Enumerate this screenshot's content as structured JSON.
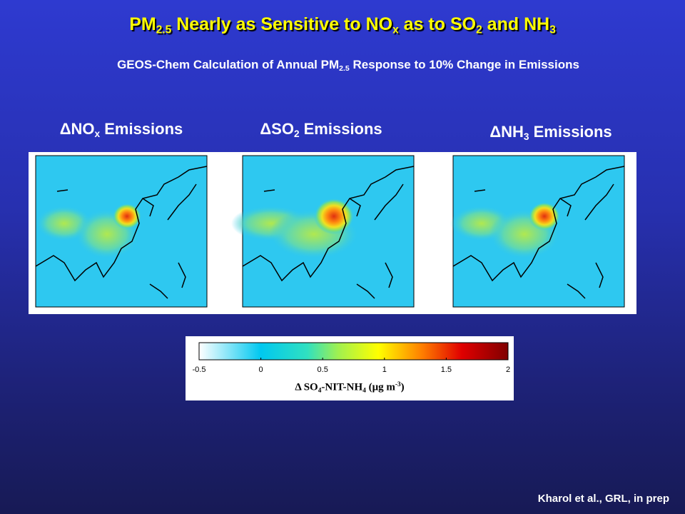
{
  "title": [
    {
      "text": "PM"
    },
    {
      "sub": "2.5"
    },
    {
      "text": " Nearly as Sensitive to NO"
    },
    {
      "sub": "x"
    },
    {
      "text": " as to SO"
    },
    {
      "sub": "2"
    },
    {
      "text": " and NH"
    },
    {
      "sub": "3"
    }
  ],
  "subtitle": [
    {
      "text": "GEOS-Chem Calculation of Annual PM"
    },
    {
      "sub": "2.5"
    },
    {
      "text": " Response to 10% Change in Emissions"
    }
  ],
  "panels": [
    {
      "label": [
        {
          "text": "ΔNO"
        },
        {
          "sub": "x"
        },
        {
          "text": " Emissions"
        }
      ]
    },
    {
      "label": [
        {
          "text": "ΔSO"
        },
        {
          "sub": "2"
        },
        {
          "text": " Emissions"
        }
      ]
    },
    {
      "label": [
        {
          "text": "ΔNH"
        },
        {
          "sub": "3"
        },
        {
          "text": " Emissions"
        }
      ]
    }
  ],
  "colorbar": {
    "lim": [
      -0.5,
      2
    ],
    "ticks": [
      -0.5,
      0,
      0.5,
      1,
      1.5,
      2
    ],
    "label": [
      {
        "text": "Δ SO"
      },
      {
        "sub": "4"
      },
      {
        "text": "-NIT-NH"
      },
      {
        "sub": "4"
      },
      {
        "text": " (μg m"
      },
      {
        "sup": "-3"
      },
      {
        "text": ")"
      }
    ]
  },
  "credit": "Kharol et al., GRL, in prep"
}
